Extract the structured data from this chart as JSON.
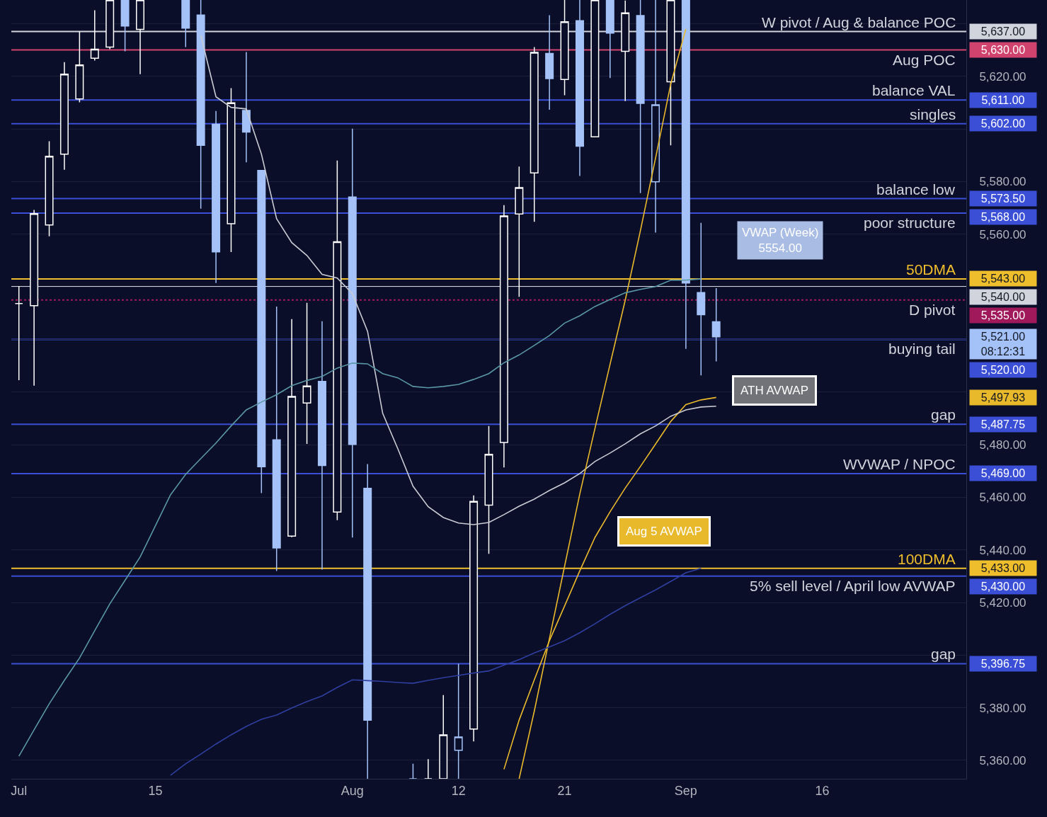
{
  "chart_data": {
    "type": "candlestick",
    "categories": [
      "Jul",
      null,
      null,
      null,
      null,
      null,
      null,
      null,
      null,
      "15",
      null,
      null,
      null,
      null,
      null,
      null,
      null,
      null,
      null,
      null,
      null,
      null,
      "Aug",
      null,
      null,
      null,
      null,
      null,
      null,
      "12",
      null,
      null,
      null,
      null,
      null,
      null,
      "21",
      null,
      null,
      null,
      null,
      null,
      null,
      null,
      "Sep",
      null,
      null,
      null,
      null,
      null,
      null,
      null,
      null,
      "16",
      null,
      null,
      null,
      null,
      null,
      null,
      null,
      null,
      null
    ],
    "ohlc": [
      [
        5533.6,
        5540.3,
        5504.5,
        5533.6
      ],
      [
        5532.8,
        5569.2,
        5502.4,
        5567.8
      ],
      [
        5563.5,
        5595.3,
        5559.2,
        5589.6
      ],
      [
        5590.4,
        5625.4,
        5584.5,
        5620.8
      ],
      [
        5611.4,
        5637.0,
        5610.1,
        5624.3
      ],
      [
        5626.9,
        5645.1,
        5626.0,
        5630.3
      ],
      [
        5631.1,
        5649,
        5630.3,
        5649
      ],
      [
        5649,
        5649,
        5629.5,
        5639.1
      ],
      [
        5637.8,
        5649,
        5620.8,
        5649
      ],
      null,
      null,
      [
        5649,
        5649,
        5631.1,
        5638.3
      ],
      [
        5643.3,
        5649,
        5569.7,
        5593.8
      ],
      [
        5601.8,
        5606.8,
        5541.4,
        5553.3
      ],
      [
        5564.0,
        5615.5,
        5553.2,
        5609.9
      ],
      [
        5607.0,
        5629.2,
        5587.3,
        5598.8
      ],
      [
        5584.2,
        5584.2,
        5461.6,
        5471.6
      ],
      [
        5481.8,
        5532.5,
        5432.0,
        5440.7
      ],
      [
        5445.2,
        5527.7,
        5444.8,
        5498.3
      ],
      [
        5495.8,
        5533.9,
        5480.3,
        5502.3
      ],
      [
        5504.0,
        5526.9,
        5432.5,
        5472.1
      ],
      [
        5454.4,
        5588.0,
        5451.3,
        5557.1
      ],
      [
        5574.1,
        5600.1,
        5444.7,
        5480.1
      ],
      [
        5463.4,
        5472.6,
        5353,
        5375.3
      ],
      null,
      null,
      [
        5353,
        5358.7,
        5353,
        5353
      ],
      [
        5353,
        5360.5,
        5353,
        5353
      ],
      [
        5353,
        5384.8,
        5353,
        5369.7
      ],
      [
        5363.8,
        5396.75,
        5353,
        5368.9
      ],
      [
        5371.9,
        5460.7,
        5367.2,
        5458.4
      ],
      [
        5457.0,
        5487.1,
        5438.5,
        5476.3
      ],
      [
        5480.8,
        5571.0,
        5471.3,
        5566.9
      ],
      [
        5567.7,
        5585.7,
        5536.2,
        5577.7
      ],
      [
        5583.3,
        5631.1,
        5564.7,
        5629.1
      ],
      [
        5628.7,
        5643.2,
        5607.3,
        5619.1
      ],
      [
        5618.8,
        5649,
        5612.8,
        5640.7
      ],
      [
        5641.1,
        5649,
        5582.1,
        5593.4
      ],
      [
        5597.0,
        5649,
        5597.0,
        5649
      ],
      [
        5649,
        5649,
        5619.3,
        5636.4
      ],
      [
        5629.5,
        5648.8,
        5610.6,
        5644.1
      ],
      [
        5643.1,
        5649,
        5575.6,
        5609.7
      ],
      [
        5579.9,
        5649,
        5560.6,
        5609.2
      ],
      [
        5617.9,
        5649,
        5593.8,
        5649
      ],
      [
        5649,
        5649,
        5516.4,
        5541.4
      ],
      [
        5537.8,
        5564.3,
        5506.3,
        5529.4
      ],
      [
        5526.7,
        5539.5,
        5511.6,
        5521
      ],
      null,
      null,
      null,
      null,
      null,
      null,
      null,
      null,
      null,
      null,
      null,
      null,
      null,
      null,
      null,
      null
    ],
    "colors": [
      "#ffffff",
      "#ffffff",
      "#ffffff",
      "#ffffff",
      "#ffffff",
      "#ffffff",
      "#ffffff",
      "#a4c2f7",
      "#ffffff",
      null,
      null,
      "#a4c2f7",
      "#a4c2f7",
      "#a4c2f7",
      "#ffffff",
      "#a4c2f7",
      "#a4c2f7",
      "#a4c2f7",
      "#ffffff",
      "#ffffff",
      "#a4c2f7",
      "#ffffff",
      "#a4c2f7",
      "#a4c2f7",
      null,
      null,
      "#a4c2f7",
      "#ffffff",
      "#ffffff",
      "#a4c2f7",
      "#ffffff",
      "#ffffff",
      "#ffffff",
      "#ffffff",
      "#ffffff",
      "#a4c2f7",
      "#ffffff",
      "#a4c2f7",
      "#ffffff",
      "#a4c2f7",
      "#ffffff",
      "#a4c2f7",
      "#a4c2f7",
      "#ffffff",
      "#a4c2f7",
      "#a4c2f7",
      "#a4c2f7",
      null,
      null,
      null,
      null,
      null,
      null,
      null,
      null,
      null,
      null,
      null,
      null,
      null,
      null,
      null,
      null
    ],
    "value_labels": [
      null,
      null,
      null,
      null,
      null,
      null,
      null,
      null,
      null,
      null,
      null,
      null,
      null,
      null,
      null,
      null,
      null,
      null,
      null,
      null,
      null,
      null,
      null,
      null,
      null,
      null,
      null,
      null,
      null,
      null,
      null,
      null,
      null,
      null,
      null,
      null,
      null,
      null,
      null,
      null,
      null,
      null,
      null,
      null,
      null,
      null,
      "5,521.00",
      null,
      null,
      null,
      null,
      null,
      null,
      null,
      null,
      null,
      null,
      null,
      null,
      null,
      null,
      null,
      null
    ],
    "series": [
      {
        "type": "line",
        "name": "Aug 5 AVWAP",
        "color": "#e9b92c",
        "values": [
          null,
          null,
          null,
          null,
          null,
          null,
          null,
          null,
          null,
          null,
          null,
          null,
          null,
          null,
          null,
          null,
          null,
          null,
          null,
          null,
          null,
          null,
          null,
          null,
          null,
          null,
          null,
          null,
          null,
          null,
          null,
          null,
          5356.6,
          5375.3,
          5390.6,
          5405.5,
          5418.7,
          5432.0,
          5444.7,
          5454.5,
          5463.5,
          5471.7,
          5480.2,
          5488.8,
          5495.2,
          5497.0,
          5497.93,
          null,
          null,
          null,
          null,
          null,
          null,
          null,
          null,
          null,
          null,
          null,
          null,
          null,
          null,
          null,
          null
        ]
      },
      {
        "type": "line",
        "name": "ATH AVWAP",
        "color": "#c9cbd3",
        "values": [
          null,
          null,
          null,
          null,
          null,
          null,
          null,
          null,
          null,
          null,
          null,
          null,
          5635.6,
          5612.2,
          5608.2,
          5607.6,
          5590.4,
          5565.9,
          5556.8,
          5551.9,
          5544.7,
          5543.3,
          5537.4,
          5523.1,
          5491.9,
          5478.4,
          5464.2,
          5456.4,
          5452.3,
          5450.2,
          5449.6,
          5450.4,
          5453.4,
          5456.6,
          5459.3,
          5462.6,
          5465.5,
          5469.0,
          5473.6,
          5476.8,
          5480.3,
          5484.1,
          5487.1,
          5490.8,
          5493.2,
          5494.3,
          5494.6,
          null,
          null,
          null,
          null,
          null,
          null,
          null,
          null,
          null,
          null,
          null,
          null,
          null,
          null,
          null,
          null
        ]
      },
      {
        "type": "line",
        "color": "#e9b92c",
        "values": [
          null,
          null,
          null,
          null,
          null,
          null,
          null,
          null,
          null,
          null,
          null,
          null,
          null,
          null,
          null,
          null,
          null,
          null,
          null,
          null,
          null,
          null,
          null,
          null,
          null,
          null,
          null,
          null,
          null,
          null,
          null,
          null,
          null,
          5353,
          5378.7,
          5406.3,
          5433.8,
          5461.2,
          5486.1,
          5510.6,
          5534.9,
          5561.3,
          5588.9,
          5617.0,
          5638.0,
          null,
          null,
          null,
          null,
          null,
          null,
          null,
          null,
          null,
          null,
          null,
          null,
          null,
          null,
          null,
          null,
          null,
          null
        ]
      },
      {
        "type": "line",
        "color": "#5a97a5",
        "values": [
          5361.6,
          5371.6,
          5381.5,
          5390.4,
          5398.9,
          5409.3,
          5419.5,
          5428.4,
          5437.3,
          5449.1,
          5460.9,
          5468.7,
          5474.7,
          5480.6,
          5487.1,
          5493.2,
          5496.2,
          5499.0,
          5502.4,
          5504.4,
          5505.9,
          5509.1,
          5511.0,
          5510.7,
          5507.0,
          5505.4,
          5502.1,
          5501.6,
          5502.1,
          5502.9,
          5504.8,
          5507.0,
          5511.1,
          5514.1,
          5517.7,
          5521.5,
          5526.2,
          5529.0,
          5532.5,
          5535.2,
          5537.7,
          5539.0,
          5540.1,
          5542.5,
          5542.5,
          5543,
          null,
          null,
          null,
          null,
          null,
          null,
          null,
          null,
          null,
          null,
          null,
          null,
          null,
          null,
          null,
          null,
          null
        ]
      },
      {
        "type": "line",
        "color": "#2f3f9f",
        "values": [
          null,
          null,
          null,
          null,
          null,
          null,
          null,
          null,
          null,
          null,
          5354.3,
          5358.7,
          5362.4,
          5366.2,
          5369.7,
          5372.9,
          5375.6,
          5377.2,
          5379.9,
          5382.3,
          5384.5,
          5387.7,
          5390.6,
          5390.3,
          5390.0,
          5389.6,
          5389.3,
          5390.4,
          5391.4,
          5392.3,
          5393.2,
          5394.0,
          5396.2,
          5398.3,
          5400.8,
          5403.1,
          5405.5,
          5408.5,
          5411.9,
          5415.5,
          5418.8,
          5421.8,
          5424.8,
          5428.0,
          5431.3,
          5433,
          null,
          null,
          null,
          null,
          null,
          null,
          null,
          null,
          null,
          null,
          null,
          null,
          null,
          null,
          null,
          null,
          null
        ]
      }
    ],
    "ylim": [
      5353,
      5649
    ],
    "yticks": [
      {
        "value": 5360,
        "label": "5,360.00"
      },
      {
        "value": 5380,
        "label": "5,380.00"
      },
      {
        "value": 5400,
        "label": null
      },
      {
        "value": 5420,
        "label": "5,420.00"
      },
      {
        "value": 5440,
        "label": "5,440.00"
      },
      {
        "value": 5460,
        "label": "5,460.00"
      },
      {
        "value": 5480,
        "label": "5,480.00"
      },
      {
        "value": 5500,
        "label": null
      },
      {
        "value": 5520,
        "label": null
      },
      {
        "value": 5540,
        "label": null
      },
      {
        "value": 5560,
        "label": "5,560.00"
      },
      {
        "value": 5580,
        "label": "5,580.00"
      },
      {
        "value": 5600,
        "label": null
      },
      {
        "value": 5620,
        "label": "5,620.00"
      },
      {
        "value": 5640,
        "label": null
      }
    ],
    "grid": "y",
    "ref_lines": [
      {
        "axis": "y",
        "value": 5637,
        "label": "W pivot / Aug & balance POC",
        "color": "#d1d4dc"
      },
      {
        "axis": "y",
        "value": 5630,
        "label": "Aug POC",
        "color": "#d0436f"
      },
      {
        "axis": "y",
        "value": 5611,
        "label": "balance VAL",
        "color": "#3a4fd6"
      },
      {
        "axis": "y",
        "value": 5602,
        "label": "singles",
        "color": "#3a4fd6"
      },
      {
        "axis": "y",
        "value": 5573.5,
        "label": "balance low",
        "color": "#3a4fd6"
      },
      {
        "axis": "y",
        "value": 5568,
        "label": "poor structure",
        "color": "#3a4fd6"
      },
      {
        "axis": "y",
        "value": 5543,
        "label": "50DMA",
        "color": "#efbe2c"
      },
      {
        "axis": "y",
        "value": 5540,
        "label": null,
        "color": "#d1d4dc"
      },
      {
        "axis": "y",
        "value": 5535,
        "label": "D pivot",
        "color": "#a01a5b",
        "line_style": "dotted"
      },
      {
        "axis": "y",
        "value": 5520,
        "label": "buying tail",
        "color": "#3a4fd6"
      },
      {
        "axis": "y",
        "value": 5487.75,
        "label": "gap",
        "color": "#3a4fd6"
      },
      {
        "axis": "y",
        "value": 5469,
        "label": "WVWAP / NPOC",
        "color": "#3a4fd6"
      },
      {
        "axis": "y",
        "value": 5433,
        "label": "100DMA",
        "color": "#efbe2c"
      },
      {
        "axis": "y",
        "value": 5430,
        "label": "5% sell level / April low AVWAP",
        "color": "#3a4fd6"
      },
      {
        "axis": "y",
        "value": 5396.75,
        "label": "gap",
        "color": "#3a4fd6"
      }
    ],
    "annotations": [
      "5,637.00",
      "5,630.00",
      "5,611.00",
      "5,602.00",
      "5,573.50",
      "5,568.00",
      "5,543.00",
      "5,540.00",
      "5,535.00",
      "5,520.00",
      "5,487.75",
      "5,469.00",
      "5,433.00",
      "5,430.00",
      "5,396.75",
      "5,497.93",
      "VWAP (Week)\n5554.00",
      "08:12:31"
    ]
  }
}
